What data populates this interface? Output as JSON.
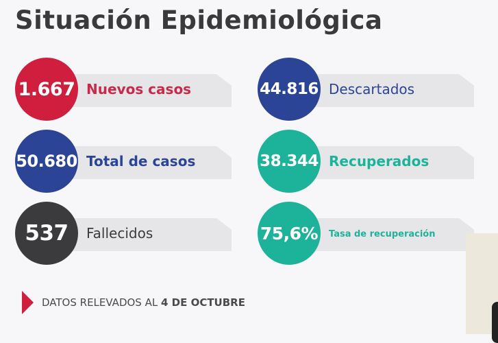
{
  "title": "Situación Epidemiológica",
  "stats": [
    {
      "value": "1.667",
      "label": "Nuevos casos",
      "color": "#d01f3e"
    },
    {
      "value": "50.680",
      "label": "Total de casos",
      "color": "#2b4496"
    },
    {
      "value": "537",
      "label": "Fallecidos",
      "color": "#3b3b3d"
    },
    {
      "value": "44.816",
      "label": "Descartados",
      "color": "#2b4496"
    },
    {
      "value": "38.344",
      "label": "Recuperados",
      "color": "#1db39b"
    },
    {
      "value": "75,6%",
      "label": "Tasa de recuperación",
      "color": "#1db39b"
    }
  ],
  "footer": {
    "prefix": "DATOS RELEVADOS AL ",
    "date": "4 DE OCTUBRE"
  }
}
